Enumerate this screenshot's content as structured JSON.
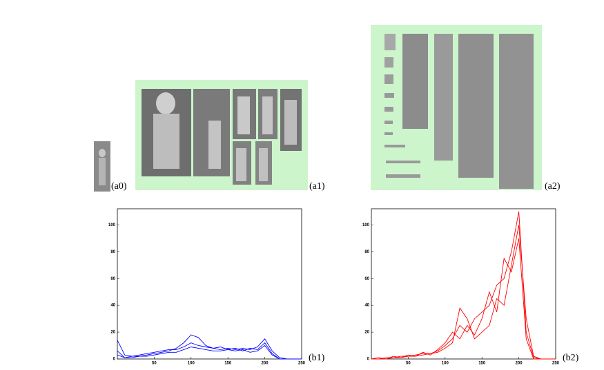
{
  "panels": [
    {
      "label": "(a0)"
    },
    {
      "label": "(a1)"
    },
    {
      "label": "(a2)"
    }
  ],
  "chart_data": [
    {
      "type": "line",
      "caption": "(b1)",
      "x": [
        0,
        10,
        20,
        30,
        40,
        50,
        60,
        70,
        80,
        90,
        100,
        110,
        120,
        130,
        140,
        150,
        160,
        170,
        180,
        190,
        200,
        210,
        220,
        230,
        240,
        250
      ],
      "xlim": [
        0,
        250
      ],
      "xticks": [
        50,
        100,
        150,
        200,
        250
      ],
      "ylim": [
        0,
        112
      ],
      "yticks": [
        0,
        20,
        40,
        60,
        80,
        100
      ],
      "series": [
        {
          "color": "#0000ff",
          "values": [
            14,
            3,
            2,
            2,
            3,
            4,
            5,
            6,
            8,
            12,
            18,
            16,
            10,
            8,
            7,
            8,
            7,
            8,
            7,
            9,
            15,
            6,
            1,
            0,
            0,
            0
          ]
        },
        {
          "color": "#0000ff",
          "values": [
            6,
            1,
            2,
            3,
            4,
            5,
            6,
            7,
            7,
            9,
            12,
            10,
            9,
            8,
            9,
            7,
            8,
            6,
            8,
            7,
            12,
            4,
            0,
            0,
            0,
            0
          ]
        },
        {
          "color": "#0000ff",
          "values": [
            3,
            1,
            1,
            2,
            2,
            3,
            4,
            5,
            5,
            7,
            9,
            8,
            7,
            6,
            6,
            7,
            6,
            7,
            5,
            6,
            10,
            3,
            0,
            0,
            0,
            0
          ]
        }
      ]
    },
    {
      "type": "line",
      "caption": "(b2)",
      "x": [
        0,
        10,
        20,
        30,
        40,
        50,
        60,
        70,
        80,
        90,
        100,
        110,
        120,
        130,
        140,
        150,
        160,
        170,
        180,
        190,
        200,
        210,
        220,
        230,
        240,
        250
      ],
      "xlim": [
        0,
        250
      ],
      "xticks": [
        50,
        100,
        150,
        200,
        250
      ],
      "ylim": [
        0,
        112
      ],
      "yticks": [
        0,
        20,
        40,
        60,
        80,
        100
      ],
      "series": [
        {
          "color": "#ff0000",
          "values": [
            0,
            0,
            0,
            1,
            1,
            2,
            2,
            3,
            4,
            5,
            8,
            12,
            38,
            30,
            15,
            20,
            25,
            45,
            40,
            70,
            100,
            30,
            2,
            0,
            0,
            0
          ]
        },
        {
          "color": "#ff0000",
          "values": [
            0,
            0,
            1,
            1,
            2,
            2,
            3,
            4,
            4,
            6,
            10,
            15,
            25,
            20,
            30,
            35,
            40,
            55,
            60,
            80,
            110,
            20,
            1,
            0,
            0,
            0
          ]
        },
        {
          "color": "#ff0000",
          "values": [
            0,
            1,
            0,
            2,
            1,
            3,
            2,
            5,
            3,
            7,
            12,
            20,
            15,
            25,
            18,
            30,
            50,
            35,
            75,
            65,
            90,
            15,
            0,
            0,
            0,
            0
          ]
        }
      ]
    }
  ]
}
